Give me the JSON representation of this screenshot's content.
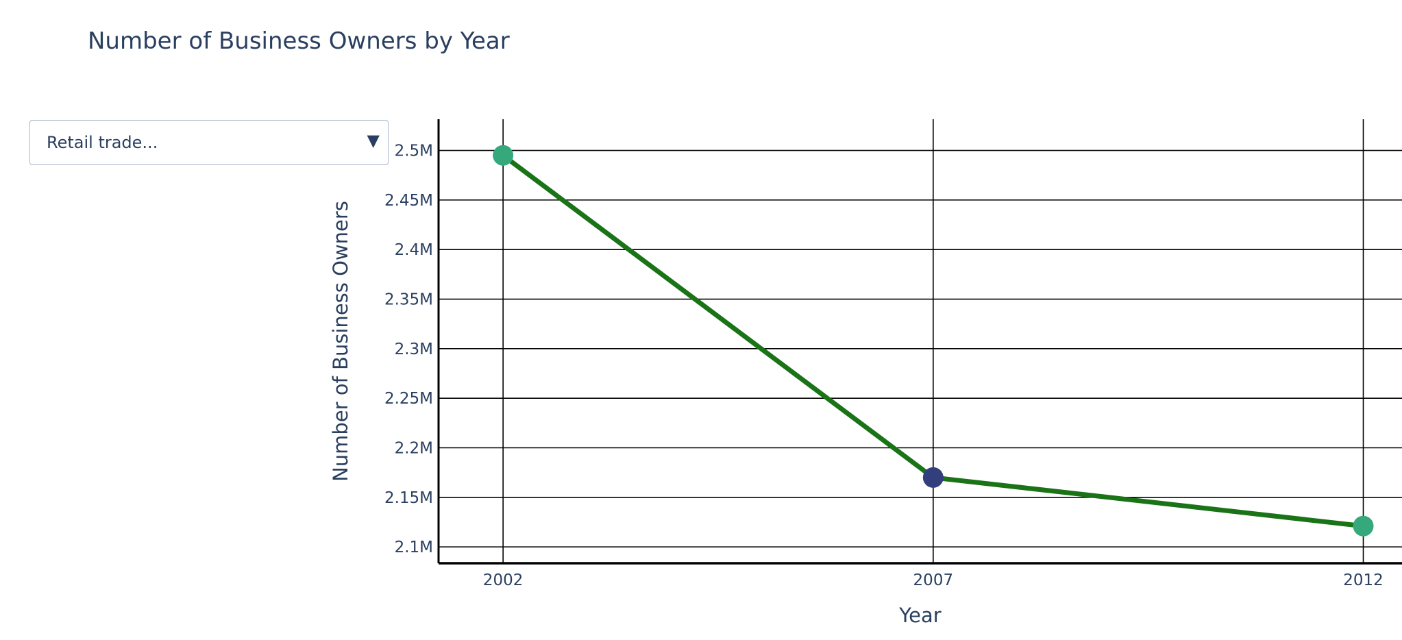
{
  "chart_data": {
    "type": "line",
    "title": "Number of Business Owners by Year",
    "xlabel": "Year",
    "ylabel": "Number of Business Owners",
    "x": [
      2002,
      2007,
      2012
    ],
    "x_tick_labels": [
      "2002",
      "2007",
      "2012"
    ],
    "xlim": [
      2001.25,
      2012.45
    ],
    "series": [
      {
        "values": [
          2495000,
          2170000,
          2121000
        ],
        "line_color": "#1a7316",
        "marker_colors": [
          "#35a97c",
          "#323f7c",
          "#35a97c"
        ]
      }
    ],
    "y_ticks": [
      2100000,
      2150000,
      2200000,
      2250000,
      2300000,
      2350000,
      2400000,
      2450000,
      2500000
    ],
    "y_tick_labels": [
      "2.1M",
      "2.15M",
      "2.2M",
      "2.25M",
      "2.3M",
      "2.35M",
      "2.4M",
      "2.45M",
      "2.5M"
    ],
    "ylim": [
      2083500,
      2531500
    ],
    "grid": true,
    "grid_color": "#000000"
  },
  "dropdown": {
    "selected": "Retail trade...",
    "arrow": "▼"
  }
}
